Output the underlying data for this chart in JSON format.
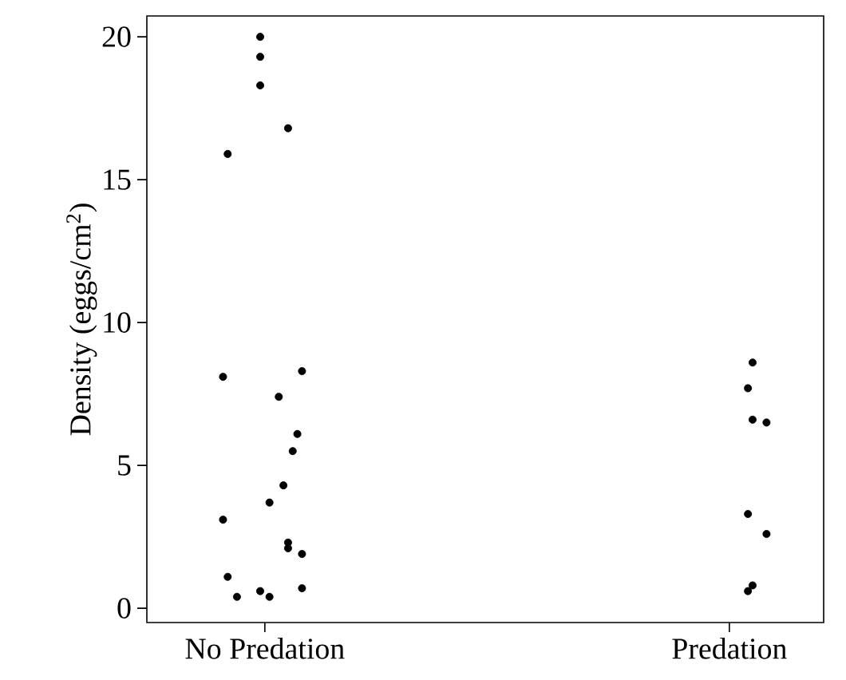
{
  "chart_data": {
    "type": "scatter",
    "ylabel": "Density (eggs/cm$^{2}$)",
    "categories": [
      "No Predation",
      "Predation"
    ],
    "ylim": [
      -0.5,
      20.73
    ],
    "yticks": [
      0,
      5,
      10,
      15,
      20
    ],
    "marker": "circle",
    "series": [
      {
        "color": "#000000",
        "x": [
          "No Predation",
          "No Predation",
          "No Predation",
          "No Predation",
          "No Predation",
          "No Predation",
          "No Predation",
          "No Predation",
          "No Predation",
          "No Predation",
          "No Predation",
          "No Predation",
          "No Predation",
          "No Predation",
          "No Predation",
          "No Predation",
          "No Predation",
          "No Predation",
          "No Predation",
          "No Predation",
          "No Predation"
        ],
        "values": [
          20.0,
          19.3,
          18.3,
          16.8,
          15.9,
          8.1,
          8.3,
          7.4,
          6.1,
          5.5,
          4.3,
          3.7,
          3.1,
          2.3,
          2.1,
          1.9,
          1.1,
          0.7,
          0.6,
          0.4,
          0.4
        ]
      },
      {
        "color": "#000000",
        "x": [
          "Predation",
          "Predation",
          "Predation",
          "Predation",
          "Predation",
          "Predation",
          "Predation",
          "Predation"
        ],
        "values": [
          8.6,
          7.7,
          6.5,
          6.6,
          3.3,
          2.6,
          0.8,
          0.6
        ]
      }
    ]
  }
}
